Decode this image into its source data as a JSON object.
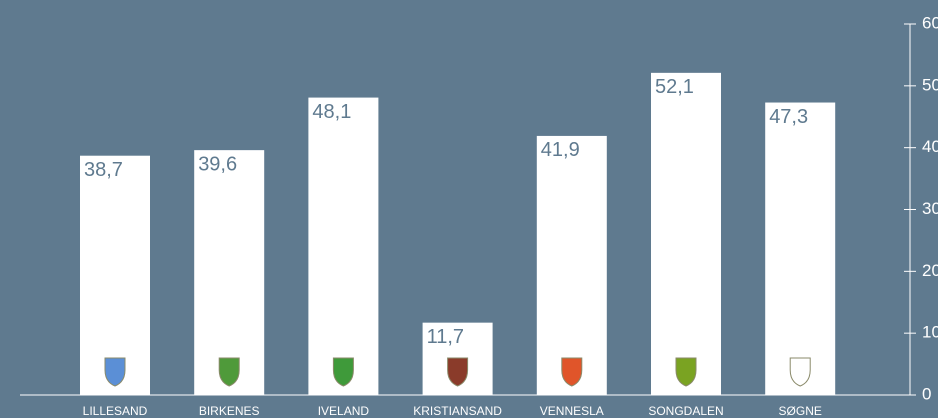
{
  "chart_data": {
    "type": "bar",
    "categories": [
      "LILLESAND",
      "BIRKENES",
      "IVELAND",
      "KRISTIANSAND",
      "VENNESLA",
      "SONGDALEN",
      "SØGNE"
    ],
    "values": [
      38.7,
      39.6,
      48.1,
      11.7,
      41.9,
      52.1,
      47.3
    ],
    "value_labels": [
      "38,7",
      "39,6",
      "48,1",
      "11,7",
      "41,9",
      "52,1",
      "47,3"
    ],
    "color": "#ffffff",
    "ylim": [
      0,
      60
    ],
    "yticks": [
      0,
      10,
      20,
      30,
      40,
      50,
      60
    ],
    "grid": false
  }
}
